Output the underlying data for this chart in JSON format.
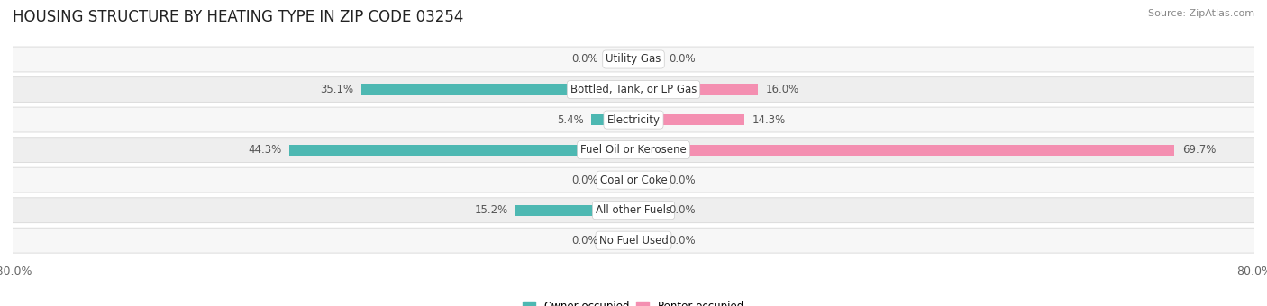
{
  "title": "HOUSING STRUCTURE BY HEATING TYPE IN ZIP CODE 03254",
  "source": "Source: ZipAtlas.com",
  "categories": [
    "Utility Gas",
    "Bottled, Tank, or LP Gas",
    "Electricity",
    "Fuel Oil or Kerosene",
    "Coal or Coke",
    "All other Fuels",
    "No Fuel Used"
  ],
  "owner_values": [
    0.0,
    35.1,
    5.4,
    44.3,
    0.0,
    15.2,
    0.0
  ],
  "renter_values": [
    0.0,
    16.0,
    14.3,
    69.7,
    0.0,
    0.0,
    0.0
  ],
  "owner_color": "#4db8b2",
  "renter_color": "#f48fb1",
  "row_light": "#f7f7f7",
  "row_dark": "#eeeeee",
  "row_border": "#dddddd",
  "xlim": 80.0,
  "title_fontsize": 12,
  "source_fontsize": 8,
  "axis_fontsize": 9,
  "label_fontsize": 8.5,
  "category_fontsize": 8.5,
  "stub_size": 3.5
}
